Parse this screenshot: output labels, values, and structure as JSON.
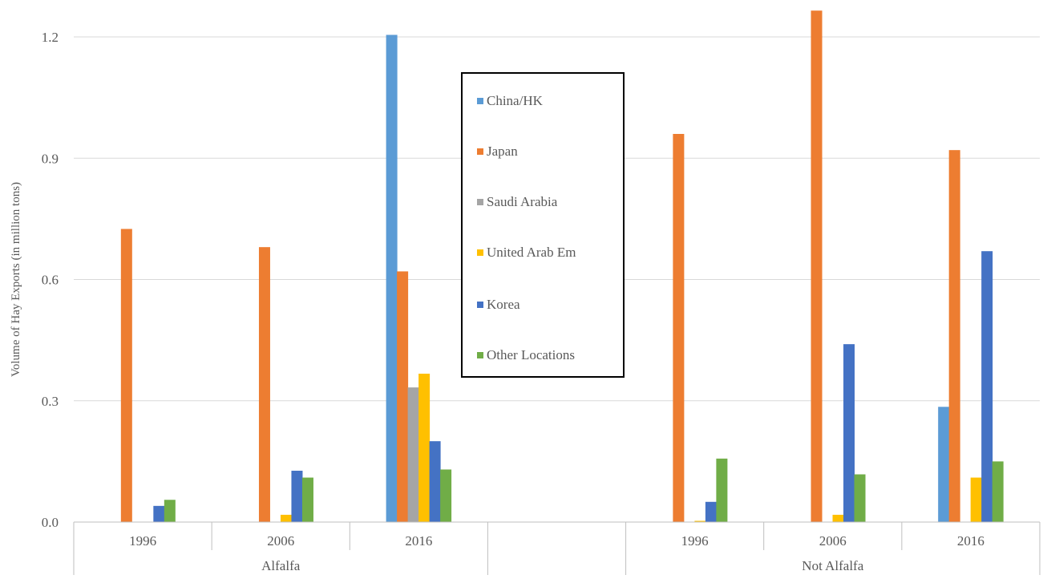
{
  "chart_data": {
    "type": "bar",
    "ylabel": "Volume of Hay Exports  (in million tons)",
    "ylim": [
      0,
      1.2
    ],
    "yticks": [
      "0.0",
      "0.3",
      "0.6",
      "0.9",
      "1.2"
    ],
    "grid": true,
    "legend_position": "center",
    "groups": [
      {
        "name": "Alfalfa",
        "categories": [
          "1996",
          "2006",
          "2016"
        ]
      },
      {
        "name": "",
        "categories": [
          ""
        ]
      },
      {
        "name": "Not Alfalfa",
        "categories": [
          "1996",
          "2006",
          "2016"
        ]
      }
    ],
    "series": [
      {
        "name": "China/HK",
        "color": "#5B9BD5",
        "values": [
          0,
          0,
          1.205,
          0,
          0,
          0,
          0.285
        ]
      },
      {
        "name": "Japan",
        "color": "#ED7D31",
        "values": [
          0.725,
          0.68,
          0.62,
          0,
          0.96,
          1.265,
          0.92
        ]
      },
      {
        "name": "Saudi Arabia",
        "color": "#A5A5A5",
        "values": [
          0,
          0,
          0.333,
          0,
          0,
          0,
          0
        ]
      },
      {
        "name": "United Arab Em",
        "color": "#FFC000",
        "values": [
          0,
          0.018,
          0.367,
          0,
          0.003,
          0.018,
          0.11
        ]
      },
      {
        "name": "Korea",
        "color": "#4472C4",
        "values": [
          0.04,
          0.127,
          0.2,
          0,
          0.05,
          0.44,
          0.67
        ]
      },
      {
        "name": "Other Locations",
        "color": "#70AD47",
        "values": [
          0.055,
          0.11,
          0.13,
          0,
          0.157,
          0.118,
          0.15
        ]
      }
    ]
  }
}
